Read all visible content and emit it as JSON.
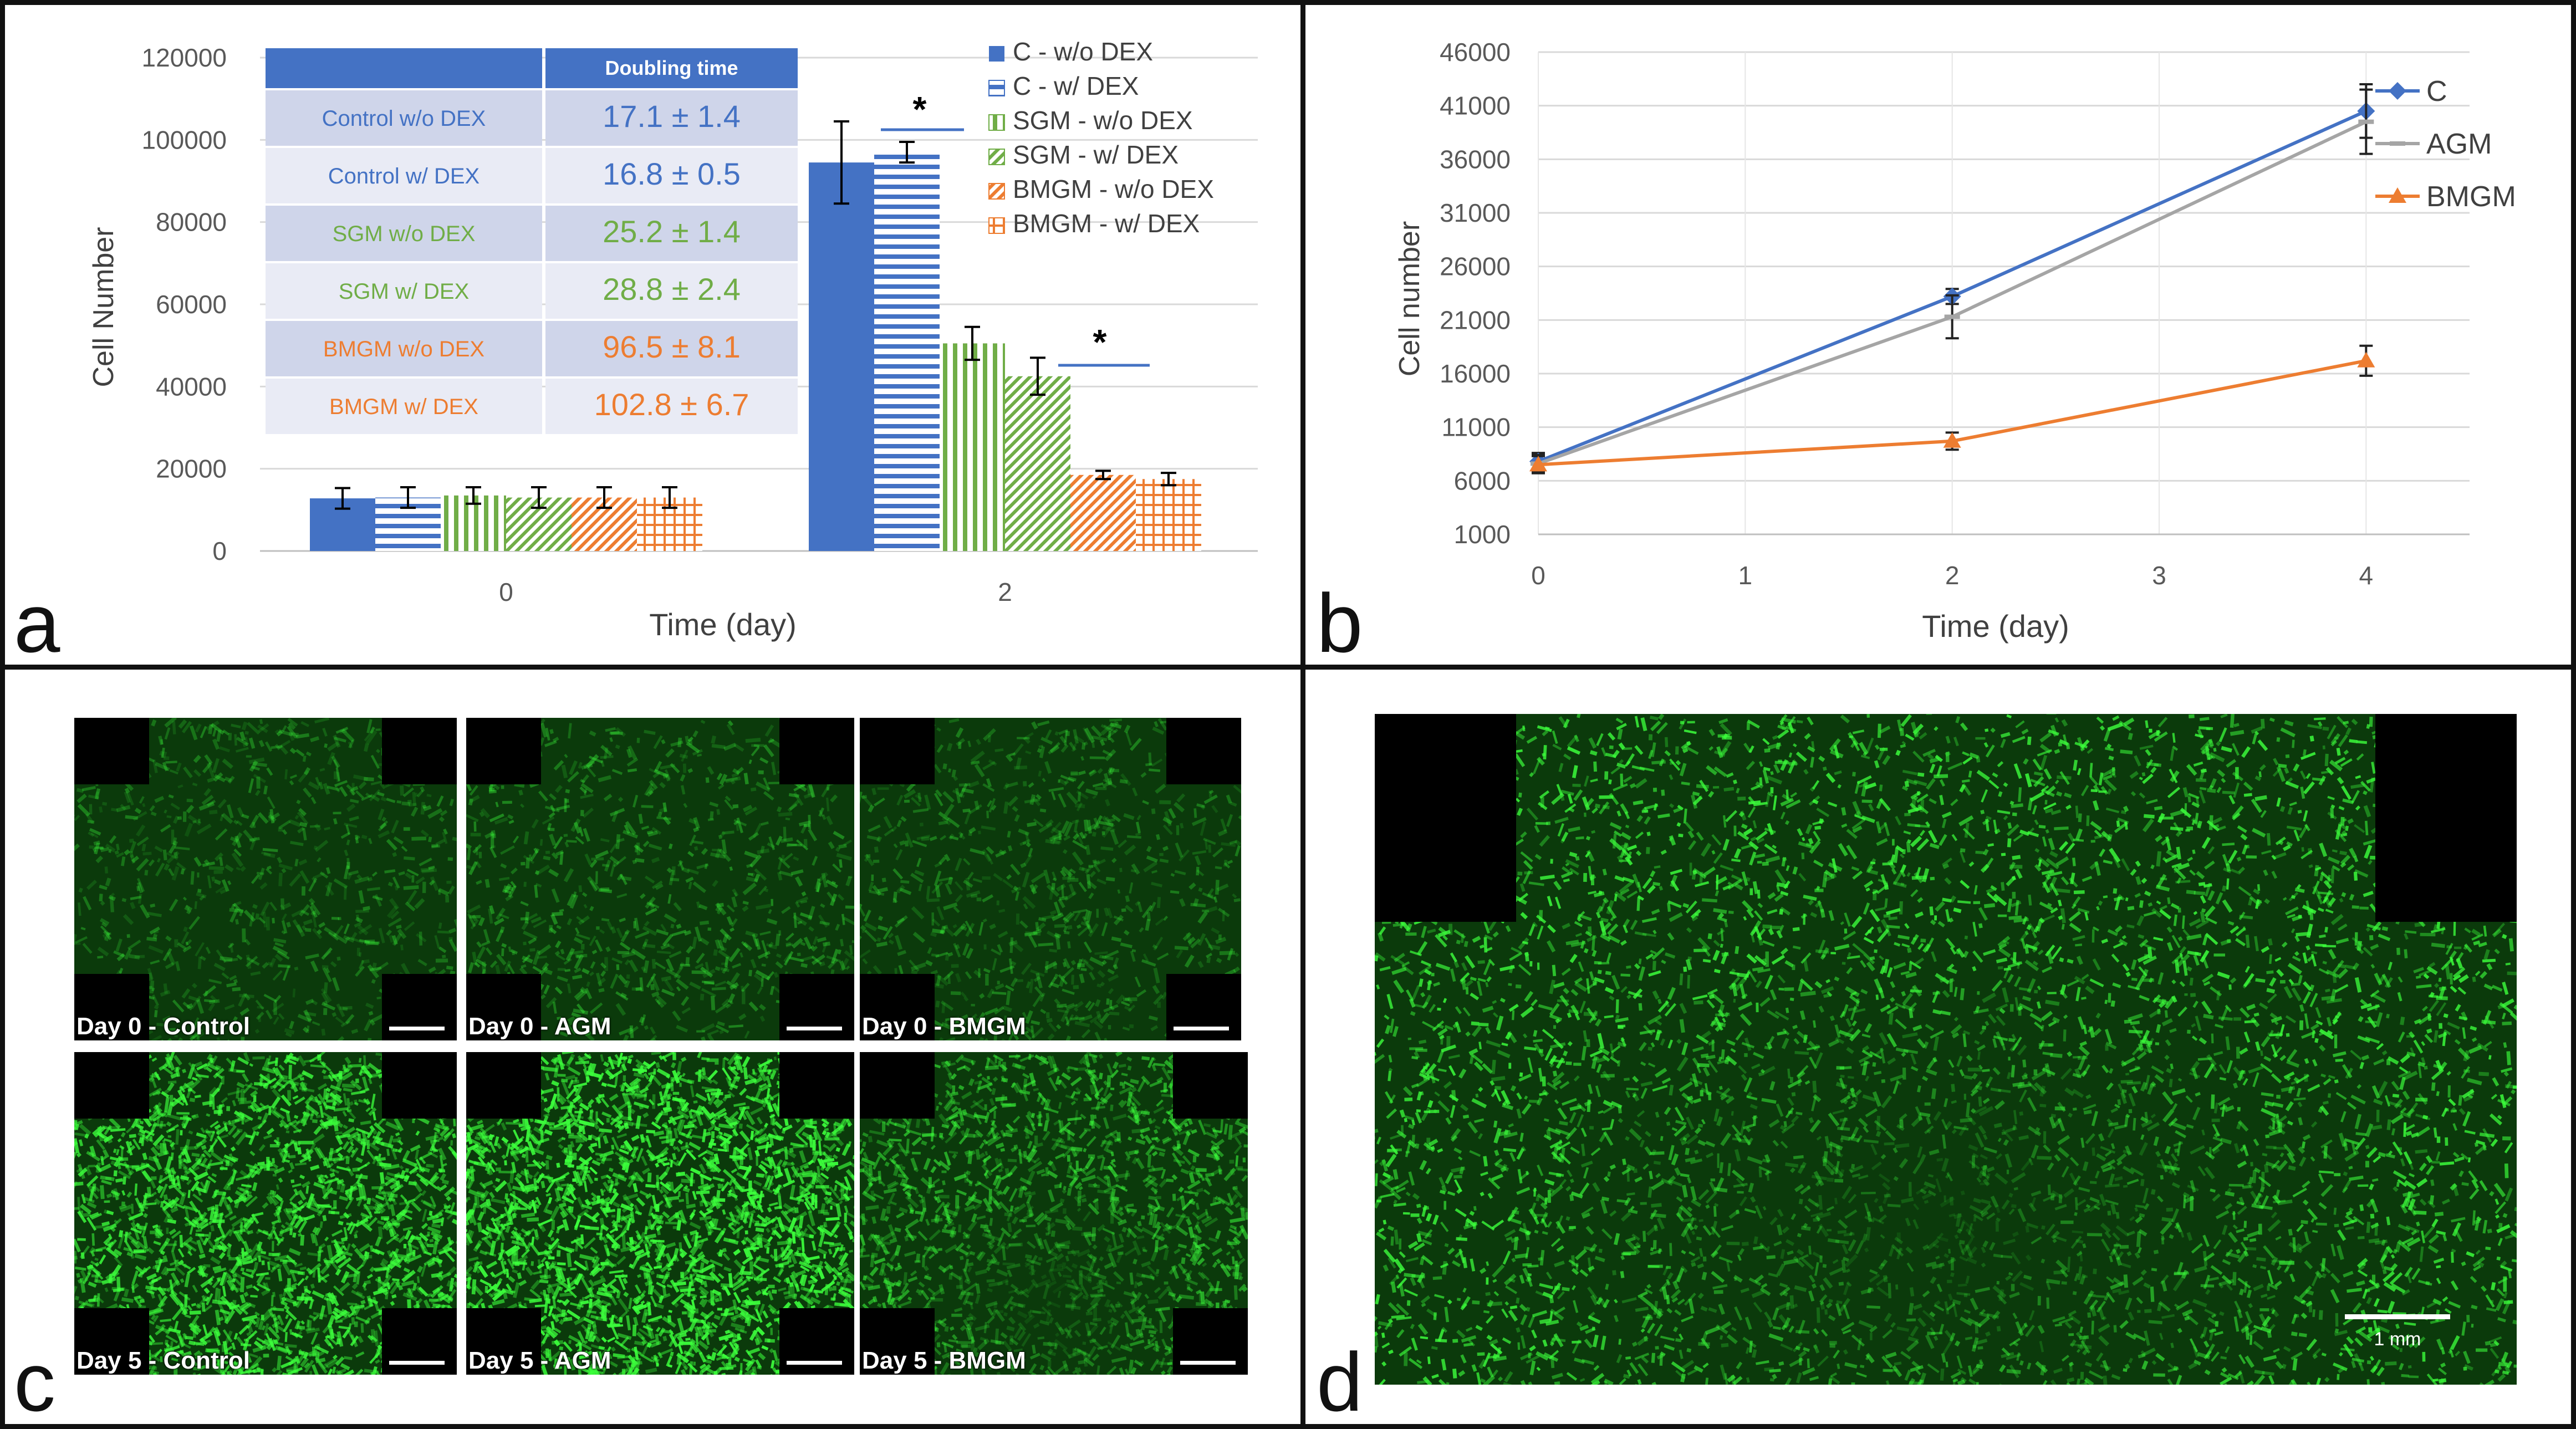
{
  "panel_letters": {
    "a": "a",
    "b": "b",
    "c": "c",
    "d": "d"
  },
  "chart_data": [
    {
      "panel": "a",
      "type": "bar",
      "categories": [
        "0",
        "2"
      ],
      "xlabel": "Time (day)",
      "ylabel": "Cell Number",
      "ylim": [
        0,
        120000
      ],
      "yticks": [
        "0",
        "20000",
        "40000",
        "60000",
        "80000",
        "100000",
        "120000"
      ],
      "significance_marker": "*",
      "series": [
        {
          "name": "C - w/o DEX",
          "values": [
            12800,
            94500
          ],
          "errors": [
            2500,
            10000
          ],
          "color": "#4472c4",
          "pattern": "solid"
        },
        {
          "name": "C - w/ DEX",
          "values": [
            13000,
            97000
          ],
          "errors": [
            2500,
            2500
          ],
          "color": "#4472c4",
          "pattern": "hlines"
        },
        {
          "name": "SGM - w/o DEX",
          "values": [
            13500,
            50500
          ],
          "errors": [
            2000,
            4000
          ],
          "color": "#70ad47",
          "pattern": "vlines"
        },
        {
          "name": "SGM - w/ DEX",
          "values": [
            13000,
            42500
          ],
          "errors": [
            2500,
            4500
          ],
          "color": "#70ad47",
          "pattern": "diag"
        },
        {
          "name": "BMGM - w/o DEX",
          "values": [
            13000,
            18500
          ],
          "errors": [
            2500,
            1000
          ],
          "color": "#ed7d31",
          "pattern": "diag"
        },
        {
          "name": "BMGM - w/ DEX",
          "values": [
            13000,
            17500
          ],
          "errors": [
            2500,
            1500
          ],
          "color": "#ed7d31",
          "pattern": "grid"
        }
      ],
      "table": {
        "header": [
          "",
          "Doubling time"
        ],
        "rows": [
          {
            "label": "Control w/o DEX",
            "value": "17.1 ± 1.4",
            "color": "#4472c4"
          },
          {
            "label": "Control w/ DEX",
            "value": "16.8 ± 0.5",
            "color": "#4472c4"
          },
          {
            "label": "SGM w/o DEX",
            "value": "25.2 ± 1.4",
            "color": "#70ad47"
          },
          {
            "label": "SGM w/ DEX",
            "value": "28.8 ± 2.4",
            "color": "#70ad47"
          },
          {
            "label": "BMGM w/o DEX",
            "value": "96.5 ± 8.1",
            "color": "#ed7d31"
          },
          {
            "label": "BMGM w/ DEX",
            "value": "102.8 ± 6.7",
            "color": "#ed7d31"
          }
        ]
      }
    },
    {
      "panel": "b",
      "type": "line",
      "xlabel": "Time (day)",
      "ylabel": "Cell number",
      "xlim": [
        0,
        4.5
      ],
      "xticks": [
        "0",
        "1",
        "2",
        "3",
        "4"
      ],
      "ylim": [
        1000,
        46000
      ],
      "yticks": [
        "1000",
        "6000",
        "11000",
        "16000",
        "21000",
        "26000",
        "31000",
        "36000",
        "41000",
        "46000"
      ],
      "x": [
        0,
        2,
        4
      ],
      "series": [
        {
          "name": "C",
          "values": [
            7800,
            23200,
            40500
          ],
          "errors": [
            800,
            700,
            2500
          ],
          "color": "#4472c4",
          "marker": "diamond"
        },
        {
          "name": "AGM",
          "values": [
            7600,
            21300,
            39500
          ],
          "errors": [
            800,
            2000,
            3000
          ],
          "color": "#a5a5a5",
          "marker": "dash"
        },
        {
          "name": "BMGM",
          "values": [
            7500,
            9700,
            17200
          ],
          "errors": [
            800,
            800,
            1400
          ],
          "color": "#ed7d31",
          "marker": "triangle"
        }
      ]
    }
  ],
  "panel_c": {
    "tiles": [
      {
        "label": "Day 0 - Control"
      },
      {
        "label": "Day 0 - AGM"
      },
      {
        "label": "Day 0 - BMGM"
      },
      {
        "label": "Day 5 - Control"
      },
      {
        "label": "Day 5 - AGM"
      },
      {
        "label": "Day 5 - BMGM"
      }
    ]
  },
  "panel_d": {
    "scale_label": "1 mm"
  }
}
